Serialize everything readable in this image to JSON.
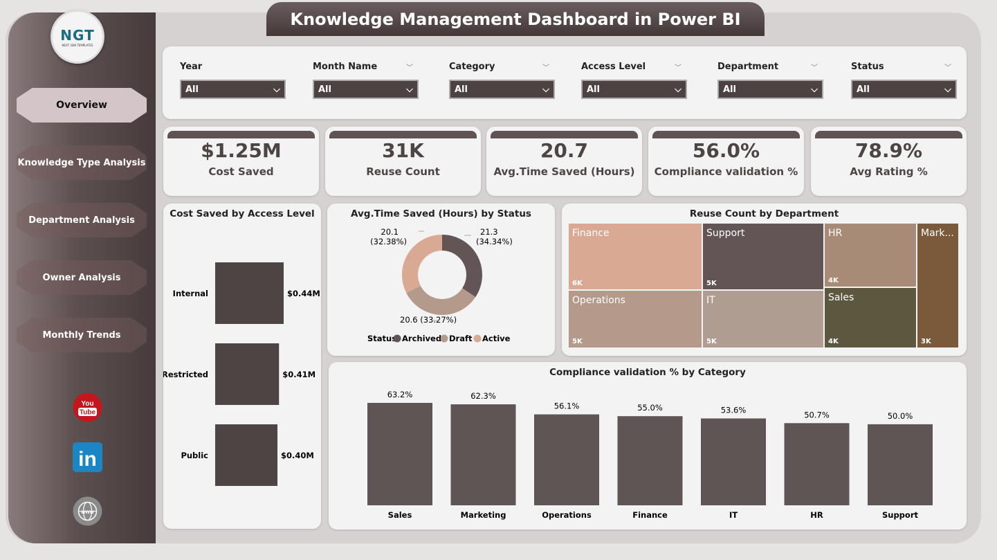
{
  "title": "Knowledge Management Dashboard in Power BI",
  "logo": {
    "text": "NGT",
    "sub": "NEXT GEN TEMPLATES"
  },
  "nav": [
    {
      "label": "Overview",
      "active": true
    },
    {
      "label": "Knowledge Type Analysis"
    },
    {
      "label": "Department Analysis"
    },
    {
      "label": "Owner Analysis"
    },
    {
      "label": "Monthly Trends"
    }
  ],
  "social": [
    "youtube-icon",
    "linkedin-icon",
    "website-icon"
  ],
  "filters": [
    {
      "label": "Year",
      "value": "All"
    },
    {
      "label": "Month Name",
      "value": "All"
    },
    {
      "label": "Category",
      "value": "All"
    },
    {
      "label": "Access Level",
      "value": "All"
    },
    {
      "label": "Department",
      "value": "All"
    },
    {
      "label": "Status",
      "value": "All"
    }
  ],
  "kpis": [
    {
      "value": "$1.25M",
      "label": "Cost Saved"
    },
    {
      "value": "31K",
      "label": "Reuse Count"
    },
    {
      "value": "20.7",
      "label": "Avg.Time Saved (Hours)"
    },
    {
      "value": "56.0%",
      "label": "Compliance validation %"
    },
    {
      "value": "78.9%",
      "label": "Avg Rating %"
    }
  ],
  "colors": {
    "dark": "#5f5353",
    "accent": "#d9a994"
  },
  "chart_data": [
    {
      "type": "bar",
      "orientation": "horizontal",
      "title": "Cost Saved by Access Level",
      "categories": [
        "Internal",
        "Restricted",
        "Public"
      ],
      "values": [
        0.44,
        0.41,
        0.4
      ],
      "labels": [
        "$0.44M",
        "$0.41M",
        "$0.40M"
      ],
      "unit": "$M",
      "color": "#4d4444"
    },
    {
      "type": "pie",
      "donut": true,
      "title": "Avg.Time Saved (Hours) by Status",
      "legend_title": "Status",
      "legend_position": "bottom",
      "categories": [
        "Archived",
        "Draft",
        "Active"
      ],
      "values": [
        21.3,
        20.6,
        20.1
      ],
      "labels": [
        "21.3 (34.34%)",
        "20.6 (33.27%)",
        "20.1 (32.38%)"
      ],
      "colors": [
        "#635555",
        "#b49a8b",
        "#d9a994"
      ]
    },
    {
      "type": "treemap",
      "title": "Reuse Count by Department",
      "categories": [
        "Finance",
        "Support",
        "HR",
        "Marketing",
        "Operations",
        "IT",
        "Sales"
      ],
      "display": [
        "Finance",
        "Support",
        "HR",
        "Mark...",
        "Operations",
        "IT",
        "Sales"
      ],
      "labels": [
        "6K",
        "5K",
        "4K",
        "3K",
        "5K",
        "5K",
        "4K"
      ],
      "values": [
        6,
        5,
        4,
        3,
        5,
        5,
        4
      ],
      "unit": "K",
      "colors": [
        "#d9a994",
        "#635555",
        "#a88b77",
        "#7a5a3a",
        "#b59a8b",
        "#b09d91",
        "#5c5840"
      ]
    },
    {
      "type": "bar",
      "title": "Compliance validation % by Category",
      "categories": [
        "Sales",
        "Marketing",
        "Operations",
        "Finance",
        "IT",
        "HR",
        "Support"
      ],
      "values": [
        63.2,
        62.3,
        56.1,
        55.0,
        53.6,
        50.7,
        50.0
      ],
      "labels": [
        "63.2%",
        "62.3%",
        "56.1%",
        "55.0%",
        "53.6%",
        "50.7%",
        "50.0%"
      ],
      "unit": "%",
      "color": "#5f5555"
    }
  ]
}
